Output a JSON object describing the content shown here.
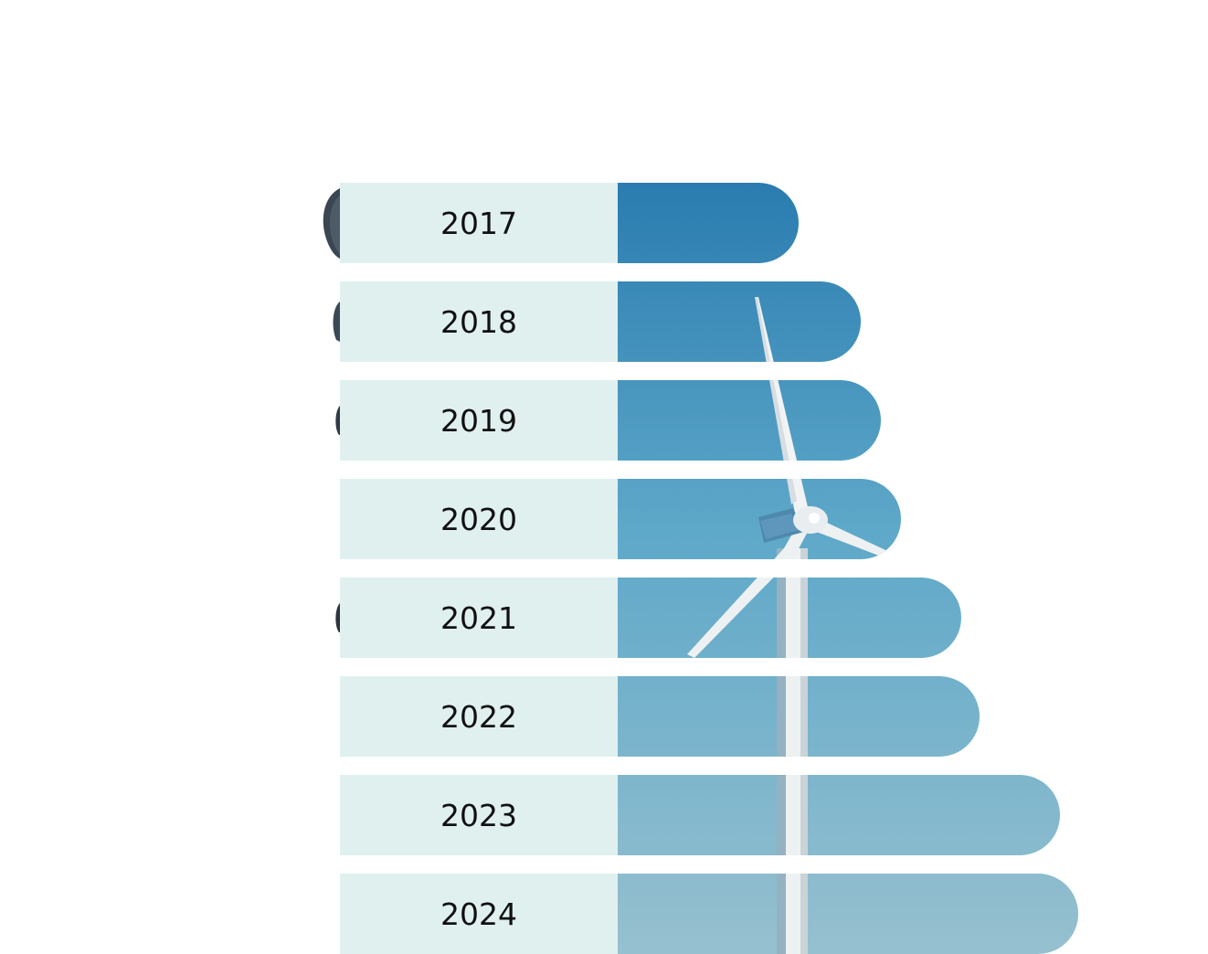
{
  "chart_data": {
    "type": "bar",
    "orientation": "horizontal",
    "title": "",
    "xlabel": "",
    "ylabel": "",
    "categories": [
      "2017",
      "2018",
      "2019",
      "2020",
      "2021",
      "2022",
      "2023",
      "2024"
    ],
    "values": [
      198,
      266,
      288,
      310,
      376,
      396,
      484,
      504
    ],
    "xlim": [
      0,
      504
    ],
    "grid": false,
    "legend": "none",
    "background_image": "wind-turbine-against-blue-sky",
    "colors": {
      "label_panel": "#dff0ef",
      "bar_top": "#2a7cb0",
      "bar_mid": "#5ea8c9",
      "bar_bottom": "#96c0cf",
      "label_text": "#111111"
    }
  }
}
